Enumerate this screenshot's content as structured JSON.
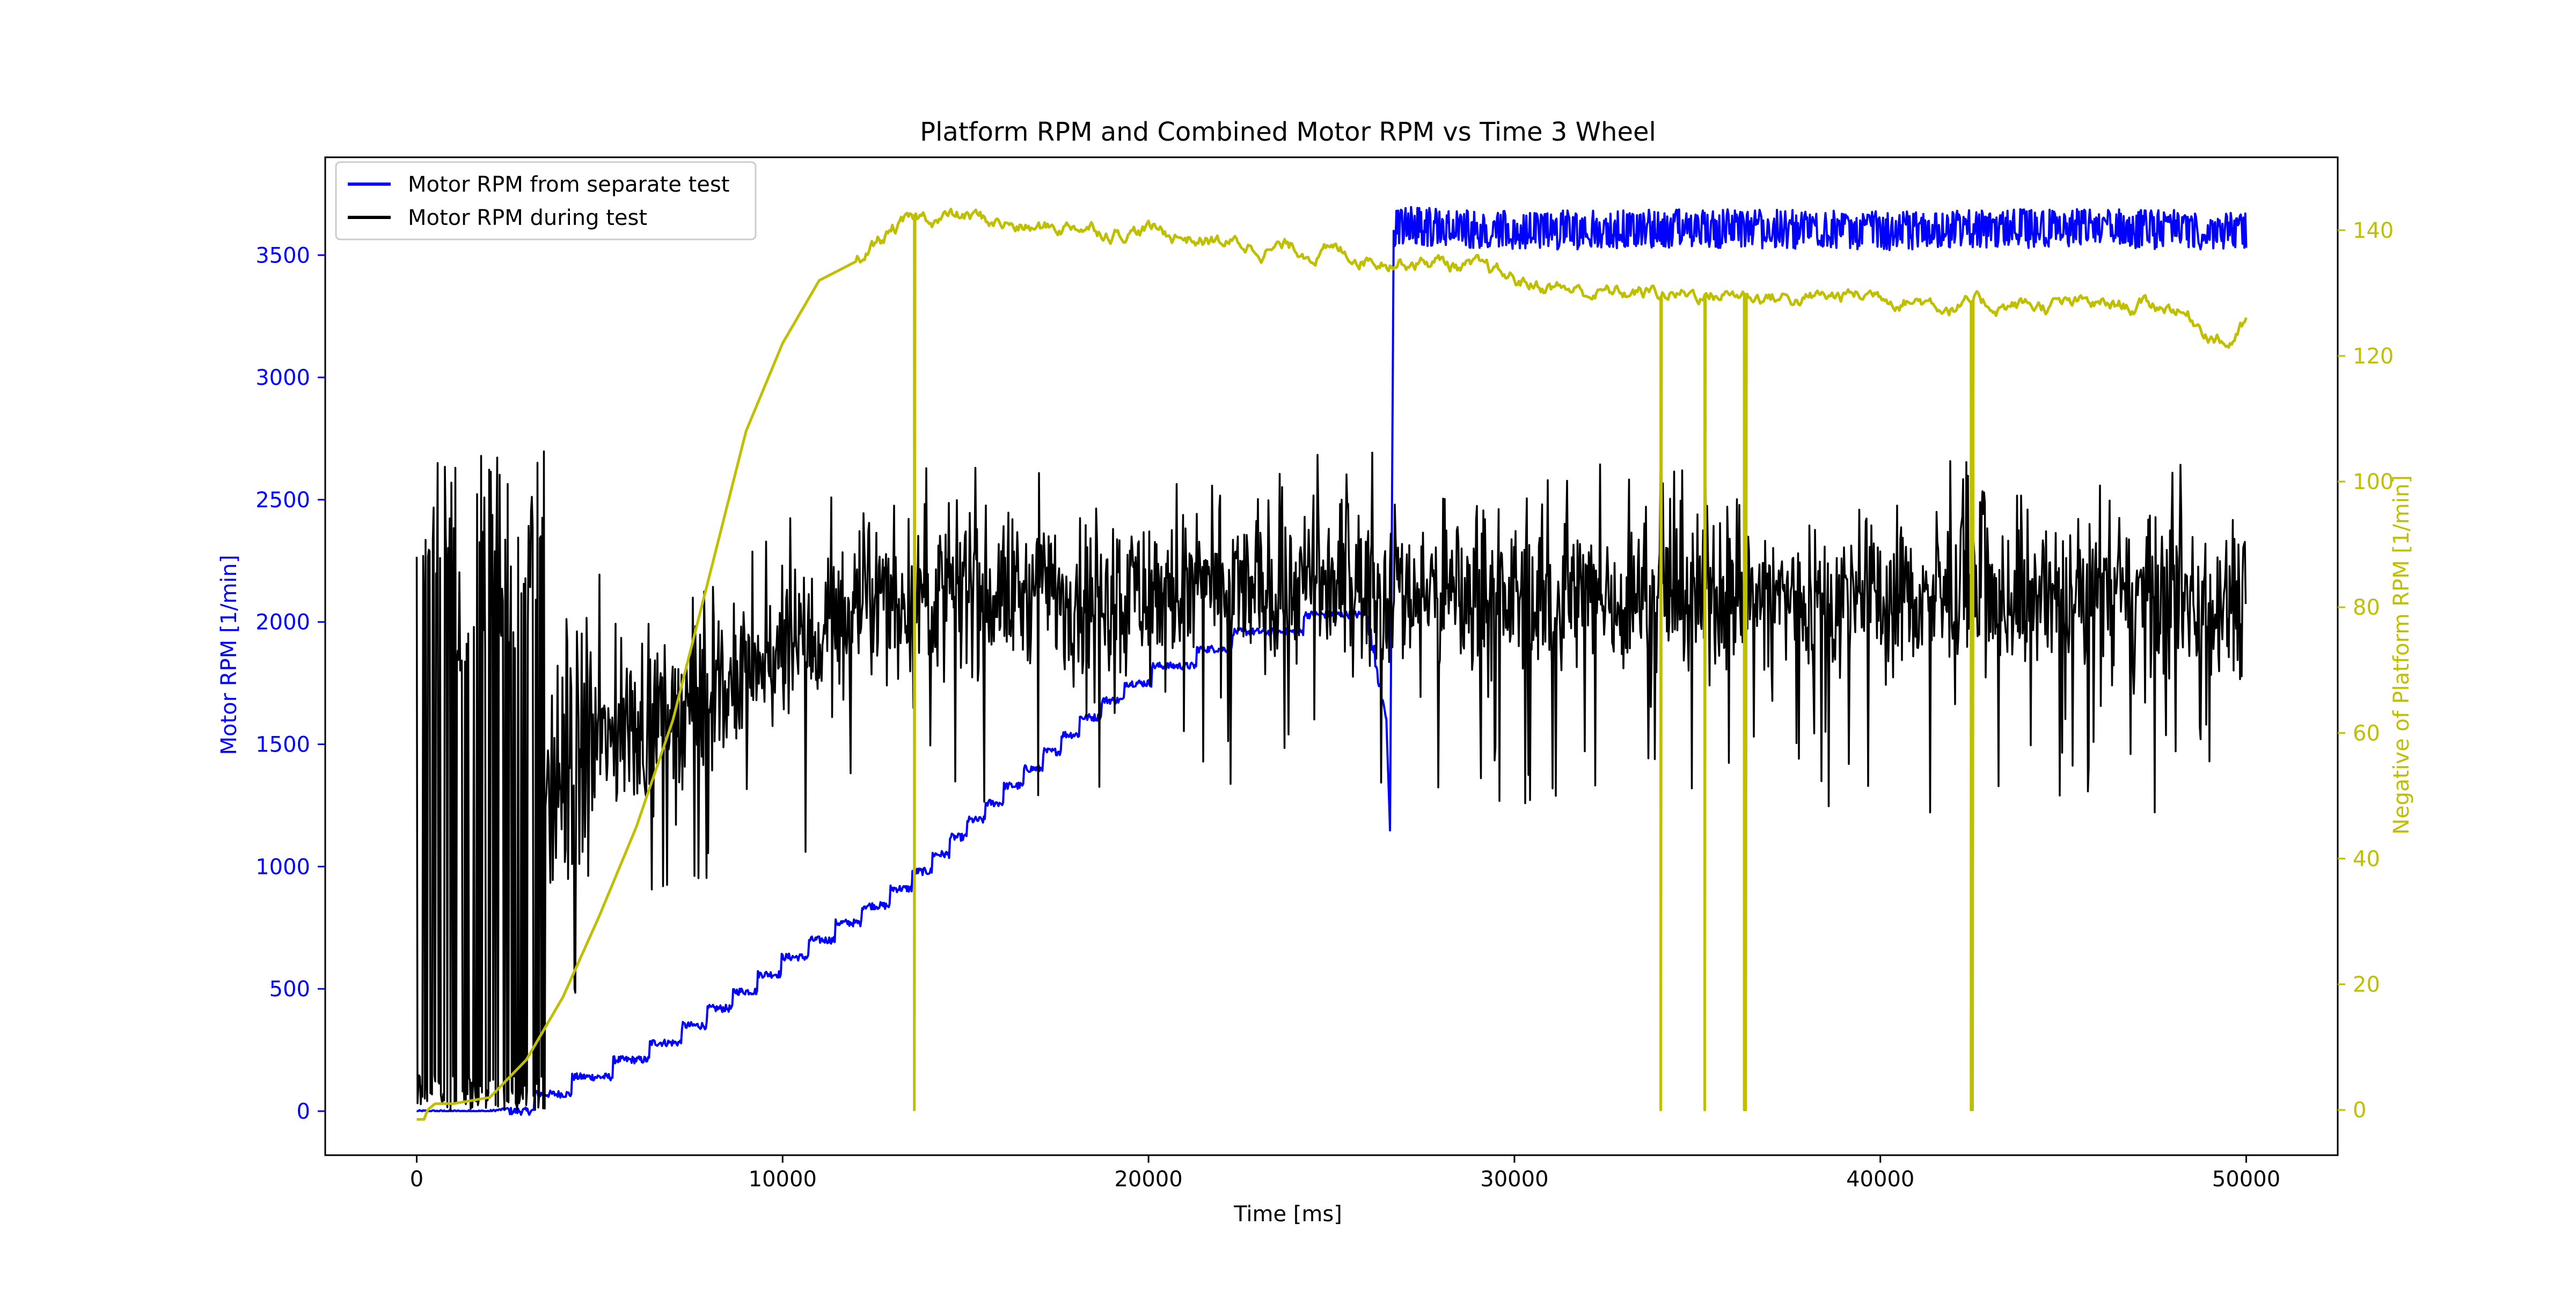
{
  "chart_data": {
    "type": "line",
    "title": "Platform RPM and Combined Motor RPM vs Time 3 Wheel",
    "xlabel": "Time [ms]",
    "ylabel_left": "Motor RPM [1/min]",
    "ylabel_right": "Negative of Platform RPM [1/min]",
    "xlim": [
      -2500,
      52500
    ],
    "ylim_left": [
      -180,
      3900
    ],
    "ylim_right": [
      -7.2,
      151.6
    ],
    "x_ticks": [
      0,
      10000,
      20000,
      30000,
      40000,
      50000
    ],
    "y_ticks_left": [
      0,
      500,
      1000,
      1500,
      2000,
      2500,
      3000,
      3500
    ],
    "y_ticks_right": [
      0,
      20,
      40,
      60,
      80,
      100,
      120,
      140
    ],
    "grid": false,
    "legend_position": "top-left",
    "colors": {
      "separate": "#0000ff",
      "during": "#000000",
      "platform": "#bfbf00",
      "left_axis": "#0000ff",
      "right_axis": "#bfbf00"
    },
    "series": [
      {
        "name": "Motor RPM from separate test",
        "axis": "left",
        "color": "#0000ff",
        "x": [
          0,
          2000,
          3000,
          4000,
          5000,
          6000,
          7000,
          8000,
          9000,
          10000,
          11000,
          12000,
          13000,
          14000,
          15000,
          16000,
          17000,
          18000,
          19000,
          20000,
          21000,
          22000,
          23000,
          24000,
          25000,
          26000,
          26500,
          26600,
          26700,
          27000,
          30000,
          35000,
          40000,
          45000,
          50000
        ],
        "y": [
          0,
          0,
          20,
          90,
          150,
          220,
          290,
          390,
          490,
          600,
          690,
          790,
          880,
          1000,
          1150,
          1290,
          1420,
          1560,
          1680,
          1780,
          1830,
          1910,
          1960,
          1990,
          2010,
          2000,
          1600,
          1150,
          3600,
          3620,
          3600,
          3610,
          3600,
          3610,
          3600
        ],
        "noise_band": [
          [
            0,
            26600,
            30
          ],
          [
            26700,
            50000,
            80
          ]
        ]
      },
      {
        "name": "Motor RPM during test",
        "axis": "left",
        "color": "#000000",
        "x": [
          0,
          3000,
          4000,
          5000,
          6000,
          7000,
          8000,
          9000,
          10000,
          11000,
          12000,
          13000,
          14000,
          16000,
          20000,
          25000,
          30000,
          35000,
          40000,
          45000,
          50000
        ],
        "y": [
          0,
          1200,
          1400,
          1500,
          1580,
          1650,
          1700,
          1750,
          1850,
          1950,
          2050,
          2100,
          2100,
          2120,
          2120,
          2150,
          2100,
          2100,
          2100,
          2100,
          2100
        ],
        "noise_band": [
          [
            0,
            3500,
            1300
          ],
          [
            3500,
            5000,
            700
          ],
          [
            5000,
            50000,
            400
          ]
        ]
      },
      {
        "name": "Negative of Platform RPM",
        "axis": "right",
        "color": "#bfbf00",
        "x": [
          0,
          200,
          300,
          500,
          1000,
          2000,
          3000,
          4000,
          5000,
          6000,
          7000,
          8000,
          9000,
          10000,
          11000,
          12000,
          13000,
          14000,
          15000,
          16000,
          17000,
          18000,
          19000,
          20000,
          22000,
          24000,
          26000,
          28000,
          30000,
          32000,
          34000,
          36000,
          38000,
          40000,
          42000,
          44000,
          46000,
          48000,
          49500,
          50000
        ],
        "y": [
          -1.5,
          -1.5,
          0,
          1,
          1,
          2,
          8,
          18,
          31,
          45,
          62,
          85,
          108,
          122,
          132,
          135,
          140,
          142,
          142,
          141,
          140,
          141,
          140,
          140,
          138,
          137,
          136,
          135,
          132,
          130,
          130,
          130,
          129,
          130,
          128,
          128,
          128,
          128,
          122,
          125
        ],
        "dropouts": [
          13600,
          34000,
          35200,
          36300,
          42500
        ]
      }
    ]
  }
}
